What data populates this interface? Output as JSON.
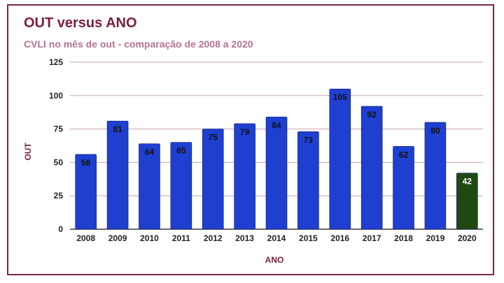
{
  "chart_data": {
    "type": "bar",
    "title": "OUT versus ANO",
    "subtitle": "CVLI no mês de out - comparação de 2008 a 2020",
    "xlabel": "ANO",
    "ylabel": "OUT",
    "categories": [
      "2008",
      "2009",
      "2010",
      "2011",
      "2012",
      "2013",
      "2014",
      "2015",
      "2016",
      "2017",
      "2018",
      "2019",
      "2020"
    ],
    "values": [
      56,
      81,
      64,
      65,
      75,
      79,
      84,
      73,
      105,
      92,
      62,
      80,
      42
    ],
    "ylim": [
      0,
      125
    ],
    "yticks": [
      0,
      25,
      50,
      75,
      100,
      125
    ],
    "grid": true,
    "colors": {
      "bar": "#1f3fd1",
      "highlight_bar": "#1e4a12",
      "grid": "#c9a5b1",
      "title": "#7a1f3d",
      "subtitle": "#b2748c",
      "label_dark": "#111111",
      "label_light": "#ffffff"
    },
    "highlight_category": "2020"
  }
}
